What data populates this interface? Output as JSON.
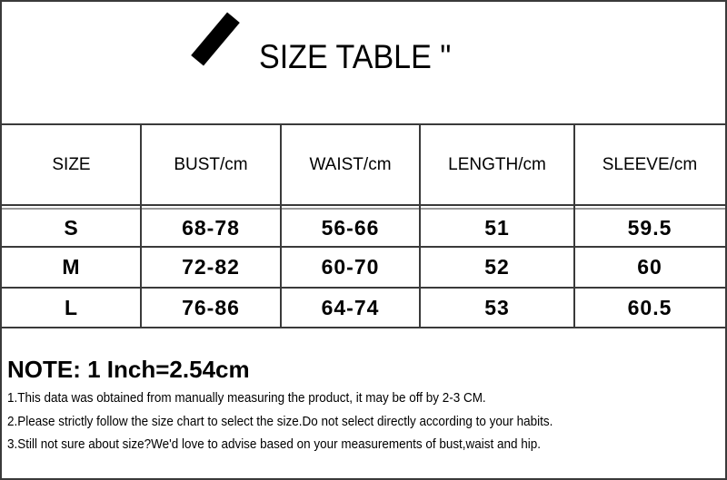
{
  "title": "SIZE TABLE \"",
  "table": {
    "headers": [
      "SIZE",
      "BUST/cm",
      "WAIST/cm",
      "LENGTH/cm",
      "SLEEVE/cm"
    ],
    "rows": [
      [
        "S",
        "68-78",
        "56-66",
        "51",
        "59.5"
      ],
      [
        "M",
        "72-82",
        "60-70",
        "52",
        "60"
      ],
      [
        "L",
        "76-86",
        "64-74",
        "53",
        "60.5"
      ]
    ]
  },
  "notes": {
    "title": "NOTE: 1 Inch=2.54cm",
    "items": [
      "1.This data was obtained from manually measuring the product, it may be off by 2-3 CM.",
      "2.Please strictly follow the size chart to select the size.Do not select directly according to your habits.",
      "3.Still not sure about size?We'd love to advise based on your measurements of bust,waist and hip."
    ]
  }
}
